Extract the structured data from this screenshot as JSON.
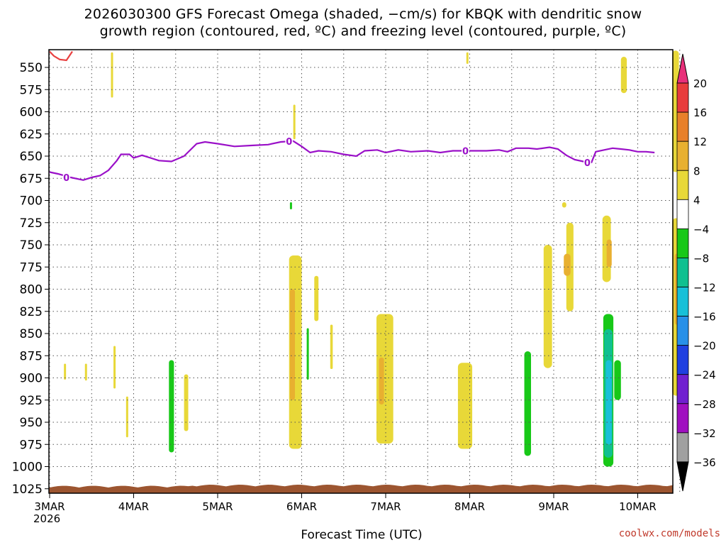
{
  "title": "2026030300 GFS Forecast Omega (shaded, −cm/s) for KBQK with dendritic snow\ngrowth region (contoured, red, ºC) and freezing level (contoured, purple, ºC)",
  "credit": "coolwx.com/models",
  "chart_data": {
    "type": "heatmap",
    "title": "2026030300 GFS Forecast Omega (shaded, −cm/s) for KBQK with dendritic snow growth region (contoured, red, ºC) and freezing level (contoured, purple, ºC)",
    "xlabel": "Forecast Time (UTC)",
    "ylabel": "",
    "x_ticks": [
      "3MAR",
      "4MAR",
      "5MAR",
      "6MAR",
      "7MAR",
      "8MAR",
      "9MAR",
      "10MAR"
    ],
    "x_year_label": "2026",
    "xlim_days": [
      0,
      7.5
    ],
    "y_ticks": [
      550,
      575,
      600,
      625,
      650,
      675,
      700,
      725,
      750,
      775,
      800,
      825,
      850,
      875,
      900,
      925,
      950,
      975,
      1000,
      1025
    ],
    "ylim": [
      1030,
      530
    ],
    "grid": true,
    "colorbar": {
      "labels": [
        "20",
        "16",
        "12",
        "8",
        "4",
        "−4",
        "−8",
        "−12",
        "−16",
        "−20",
        "−24",
        "−28",
        "−32",
        "−36"
      ],
      "colors": [
        "#e8307a",
        "#e83c3c",
        "#e8802a",
        "#e8b030",
        "#e8d838",
        "#ffffff",
        "#18c818",
        "#10c090",
        "#18c0d8",
        "#2890e8",
        "#2040e0",
        "#7020d0",
        "#a010c0",
        "#a0a0a0",
        "#000000"
      ]
    },
    "freezing_level": {
      "label": "0",
      "points": [
        [
          0,
          668
        ],
        [
          0.1,
          670
        ],
        [
          0.25,
          674
        ],
        [
          0.4,
          677
        ],
        [
          0.5,
          674
        ],
        [
          0.6,
          672
        ],
        [
          0.7,
          666
        ],
        [
          0.8,
          655
        ],
        [
          0.85,
          648
        ],
        [
          0.95,
          648
        ],
        [
          1.0,
          652
        ],
        [
          1.1,
          649
        ],
        [
          1.2,
          652
        ],
        [
          1.3,
          655
        ],
        [
          1.45,
          656
        ],
        [
          1.6,
          650
        ],
        [
          1.75,
          636
        ],
        [
          1.85,
          634
        ],
        [
          2.0,
          636
        ],
        [
          2.2,
          639
        ],
        [
          2.4,
          638
        ],
        [
          2.6,
          637
        ],
        [
          2.75,
          634
        ],
        [
          2.9,
          633
        ],
        [
          3.0,
          639
        ],
        [
          3.1,
          646
        ],
        [
          3.2,
          644
        ],
        [
          3.35,
          645
        ],
        [
          3.5,
          648
        ],
        [
          3.65,
          650
        ],
        [
          3.75,
          644
        ],
        [
          3.9,
          643
        ],
        [
          4.0,
          646
        ],
        [
          4.15,
          643
        ],
        [
          4.3,
          645
        ],
        [
          4.5,
          644
        ],
        [
          4.65,
          646
        ],
        [
          4.8,
          644
        ],
        [
          5.0,
          644
        ],
        [
          5.2,
          644
        ],
        [
          5.35,
          643
        ],
        [
          5.45,
          645
        ],
        [
          5.55,
          641
        ],
        [
          5.7,
          641
        ],
        [
          5.8,
          642
        ],
        [
          5.95,
          640
        ],
        [
          6.05,
          642
        ],
        [
          6.15,
          649
        ],
        [
          6.25,
          654
        ],
        [
          6.35,
          656
        ],
        [
          6.45,
          657
        ],
        [
          6.5,
          645
        ],
        [
          6.6,
          643
        ],
        [
          6.7,
          641
        ],
        [
          6.8,
          642
        ],
        [
          6.9,
          643
        ],
        [
          7.0,
          645
        ],
        [
          7.1,
          645
        ],
        [
          7.2,
          646
        ]
      ],
      "label_positions": [
        0.2,
        2.85,
        4.95,
        6.4
      ]
    },
    "dendritic_snow_growth": {
      "color": "#e84040",
      "points": [
        [
          0.0,
          532
        ],
        [
          0.05,
          537
        ],
        [
          0.12,
          541
        ],
        [
          0.2,
          542
        ],
        [
          0.27,
          532
        ]
      ]
    },
    "omega_regions": [
      {
        "x": 0.73,
        "w": 0.012,
        "p1": 533,
        "p2": 584,
        "value": 4
      },
      {
        "x": 0.17,
        "w": 0.01,
        "p1": 884,
        "p2": 902,
        "value": 4
      },
      {
        "x": 0.42,
        "w": 0.01,
        "p1": 884,
        "p2": 903,
        "value": 4
      },
      {
        "x": 0.76,
        "w": 0.014,
        "p1": 864,
        "p2": 912,
        "value": 4
      },
      {
        "x": 0.91,
        "w": 0.025,
        "p1": 921,
        "p2": 967,
        "value": 4
      },
      {
        "x": 1.42,
        "w": 0.06,
        "p1": 880,
        "p2": 984,
        "value": -8
      },
      {
        "x": 1.6,
        "w": 0.05,
        "p1": 896,
        "p2": 960,
        "value": 4
      },
      {
        "x": 2.9,
        "w": 0.015,
        "p1": 592,
        "p2": 631,
        "value": 4
      },
      {
        "x": 2.86,
        "w": 0.012,
        "p1": 702,
        "p2": 710,
        "value": -8
      },
      {
        "x": 2.85,
        "w": 0.15,
        "p1": 762,
        "p2": 980,
        "value": 4
      },
      {
        "x": 2.86,
        "w": 0.06,
        "p1": 800,
        "p2": 925,
        "value": 8
      },
      {
        "x": 3.15,
        "w": 0.05,
        "p1": 785,
        "p2": 836,
        "value": 4
      },
      {
        "x": 3.06,
        "w": 0.015,
        "p1": 844,
        "p2": 902,
        "value": -8
      },
      {
        "x": 3.34,
        "w": 0.03,
        "p1": 840,
        "p2": 890,
        "value": 4
      },
      {
        "x": 3.89,
        "w": 0.2,
        "p1": 828,
        "p2": 974,
        "value": 4
      },
      {
        "x": 3.92,
        "w": 0.06,
        "p1": 877,
        "p2": 930,
        "value": 8
      },
      {
        "x": 4.96,
        "w": 0.004,
        "p1": 533,
        "p2": 546,
        "value": 4
      },
      {
        "x": 4.86,
        "w": 0.17,
        "p1": 883,
        "p2": 980,
        "value": 4
      },
      {
        "x": 5.65,
        "w": 0.08,
        "p1": 870,
        "p2": 988,
        "value": -8
      },
      {
        "x": 5.88,
        "w": 0.1,
        "p1": 750,
        "p2": 889,
        "value": 4
      },
      {
        "x": 6.15,
        "w": 0.085,
        "p1": 725,
        "p2": 825,
        "value": 4
      },
      {
        "x": 6.12,
        "w": 0.08,
        "p1": 760,
        "p2": 785,
        "value": 8
      },
      {
        "x": 6.1,
        "w": 0.05,
        "p1": 702,
        "p2": 708,
        "value": 4
      },
      {
        "x": 6.8,
        "w": 0.07,
        "p1": 538,
        "p2": 579,
        "value": 4
      },
      {
        "x": 6.58,
        "w": 0.1,
        "p1": 717,
        "p2": 792,
        "value": 4
      },
      {
        "x": 6.63,
        "w": 0.06,
        "p1": 744,
        "p2": 775,
        "value": 8
      },
      {
        "x": 6.59,
        "w": 0.12,
        "p1": 828,
        "p2": 1000,
        "value": -8
      },
      {
        "x": 6.6,
        "w": 0.1,
        "p1": 845,
        "p2": 990,
        "value": -12
      },
      {
        "x": 6.62,
        "w": 0.07,
        "p1": 880,
        "p2": 975,
        "value": -16
      },
      {
        "x": 6.72,
        "w": 0.08,
        "p1": 880,
        "p2": 925,
        "value": -8
      },
      {
        "x": 7.41,
        "w": 0.08,
        "p1": 531,
        "p2": 668,
        "value": 4
      },
      {
        "x": 7.41,
        "w": 0.09,
        "p1": 720,
        "p2": 920,
        "value": 4
      },
      {
        "x": 7.44,
        "w": 0.05,
        "p1": 760,
        "p2": 840,
        "value": 8
      }
    ]
  }
}
